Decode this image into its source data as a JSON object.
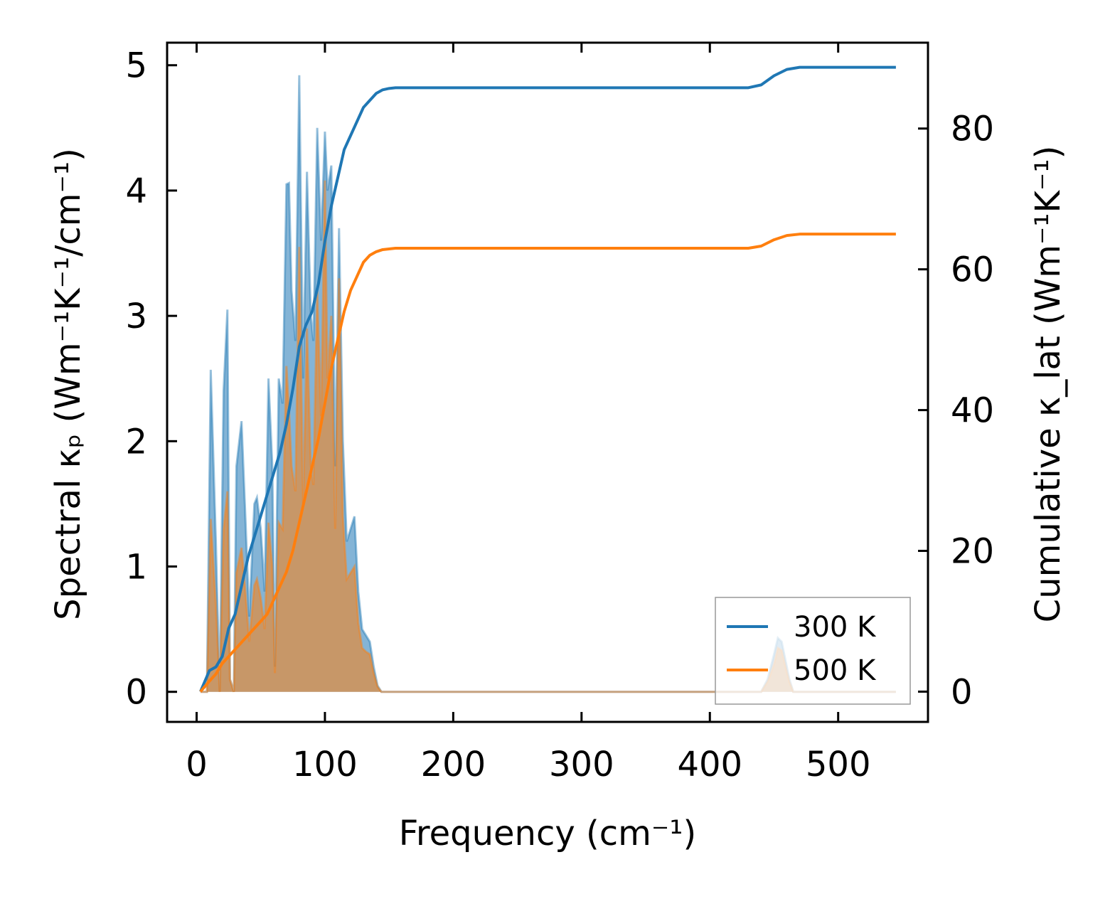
{
  "chart_data": {
    "type": "line",
    "xlabel": "Frequency (cm⁻¹)",
    "ylabel_left": "Spectral κₚ (Wm⁻¹K⁻¹/cm⁻¹)",
    "ylabel_right": "Cumulative κ_lat (Wm⁻¹K⁻¹)",
    "xlim": [
      -23,
      570
    ],
    "ylim_left": [
      -0.24,
      5.18
    ],
    "ylim_right": [
      -4.3,
      92.2
    ],
    "x_ticks": [
      0,
      100,
      200,
      300,
      400,
      500
    ],
    "y_left_ticks": [
      0,
      1,
      2,
      3,
      4,
      5
    ],
    "y_right_ticks": [
      0,
      20,
      40,
      60,
      80
    ],
    "legend": {
      "placement": "lower-right"
    },
    "colors": {
      "300 K": "#1f77b4",
      "500 K": "#ff7f0e"
    },
    "spectral_series": [
      {
        "name": "300 K",
        "axis": "left",
        "x": [
          3,
          8,
          11,
          15,
          18,
          21,
          24,
          26,
          29,
          31,
          35,
          38,
          41,
          45,
          47,
          50,
          53,
          56,
          59,
          61,
          64,
          67,
          70,
          72,
          74,
          77,
          80,
          83,
          86,
          89,
          91,
          94,
          97,
          100,
          102,
          105,
          108,
          111,
          114,
          117,
          120,
          123,
          126,
          129,
          132,
          135,
          138,
          141,
          144,
          147,
          150,
          153,
          157,
          160,
          440,
          445,
          450,
          453,
          456,
          459,
          462,
          465,
          468,
          472,
          476,
          545
        ],
        "y": [
          0,
          0,
          2.57,
          1.2,
          0,
          2.4,
          3.05,
          0.1,
          0,
          1.8,
          2.16,
          1.4,
          0.6,
          1.5,
          1.55,
          1.3,
          0.8,
          2.5,
          1.8,
          0.2,
          2.5,
          2.3,
          4.05,
          4.06,
          3.2,
          2.8,
          4.92,
          2.5,
          4.15,
          3.0,
          2.8,
          4.5,
          3.6,
          4.47,
          4.0,
          4.2,
          1.8,
          3.7,
          2.0,
          1.2,
          1.3,
          1.4,
          0.8,
          0.5,
          0.45,
          0.4,
          0.2,
          0.05,
          0,
          0,
          0,
          0,
          0,
          0,
          0,
          0.1,
          0.3,
          0.43,
          0.4,
          0.25,
          0.1,
          0,
          0,
          0,
          0,
          0
        ]
      },
      {
        "name": "500 K",
        "axis": "left",
        "x": [
          3,
          8,
          11,
          15,
          18,
          21,
          24,
          26,
          29,
          31,
          35,
          38,
          41,
          45,
          47,
          50,
          53,
          56,
          59,
          61,
          64,
          67,
          70,
          72,
          74,
          77,
          80,
          83,
          86,
          89,
          91,
          94,
          97,
          100,
          102,
          105,
          108,
          111,
          114,
          117,
          120,
          123,
          126,
          129,
          132,
          135,
          138,
          141,
          144,
          147,
          150,
          153,
          157,
          160,
          440,
          445,
          450,
          453,
          456,
          459,
          462,
          465,
          468,
          472,
          476,
          545
        ],
        "y": [
          0,
          0,
          1.38,
          0.7,
          0,
          1.3,
          1.6,
          0.1,
          0,
          0.95,
          1.15,
          0.8,
          0.4,
          0.85,
          0.9,
          0.75,
          0.5,
          1.35,
          1.0,
          0.15,
          1.35,
          1.3,
          2.6,
          2.25,
          1.8,
          1.6,
          3.55,
          1.5,
          2.9,
          1.8,
          1.65,
          3.2,
          2.2,
          4.08,
          2.5,
          3.0,
          1.3,
          3.3,
          1.4,
          0.9,
          0.95,
          1.0,
          0.55,
          0.35,
          0.32,
          0.3,
          0.15,
          0.04,
          0,
          0,
          0,
          0,
          0,
          0,
          0,
          0.08,
          0.22,
          0.35,
          0.33,
          0.2,
          0.08,
          0,
          0,
          0,
          0,
          0
        ]
      }
    ],
    "cumulative_series": [
      {
        "name": "300 K",
        "axis": "right",
        "x": [
          3,
          10,
          15,
          20,
          25,
          30,
          35,
          40,
          45,
          50,
          55,
          60,
          65,
          70,
          75,
          80,
          85,
          90,
          95,
          100,
          105,
          110,
          115,
          120,
          125,
          130,
          135,
          140,
          145,
          150,
          155,
          160,
          430,
          440,
          450,
          460,
          470,
          545
        ],
        "y": [
          0,
          3,
          3.5,
          5,
          9,
          11,
          15,
          19,
          22,
          25,
          28,
          31,
          34,
          38,
          43,
          49,
          52,
          54,
          58,
          64,
          69,
          73,
          77,
          79,
          81,
          83,
          84,
          85,
          85.5,
          85.7,
          85.8,
          85.8,
          85.8,
          86.2,
          87.5,
          88.4,
          88.7,
          88.7
        ]
      },
      {
        "name": "500 K",
        "axis": "right",
        "x": [
          3,
          10,
          15,
          20,
          25,
          30,
          35,
          40,
          45,
          50,
          55,
          60,
          65,
          70,
          75,
          80,
          85,
          90,
          95,
          100,
          105,
          110,
          115,
          120,
          125,
          130,
          135,
          140,
          145,
          150,
          155,
          160,
          430,
          440,
          450,
          460,
          470,
          545
        ],
        "y": [
          0,
          1.5,
          2.5,
          4,
          5,
          6,
          7,
          8,
          9,
          10,
          11,
          13,
          15,
          17,
          20,
          24,
          28,
          32,
          36,
          41,
          46,
          50,
          54,
          57,
          59,
          61,
          62,
          62.5,
          62.8,
          62.9,
          63,
          63,
          63,
          63.3,
          64.2,
          64.8,
          65,
          65
        ]
      }
    ]
  }
}
